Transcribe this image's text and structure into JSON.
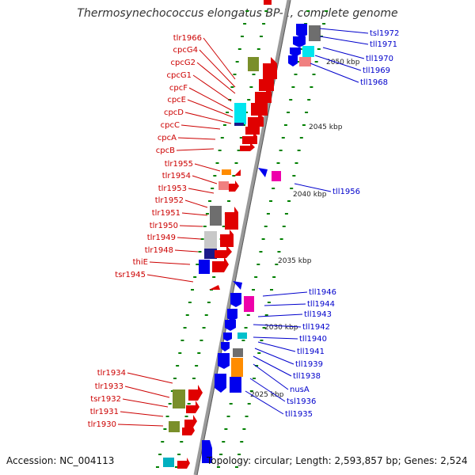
{
  "title": "Thermosynechococcus elongatus BP-1, complete genome",
  "footer": {
    "accession": "Accession: NC_004113",
    "topology": "Topology: circular; Length: 2,593,857 bp; Genes: 2,524"
  },
  "colors": {
    "forward_strand_label": "#cc0000",
    "reverse_strand_label": "#0000cc",
    "backbone": "#888888",
    "tick": "#008000"
  },
  "kbp_markers": [
    "2050 kbp",
    "2045 kbp",
    "2040 kbp",
    "2035 kbp",
    "2030 kbp",
    "2025 kbp"
  ],
  "forward_genes": [
    "tlr1966",
    "cpcG4",
    "cpcG2",
    "cpcG1",
    "cpcF",
    "cpcE",
    "cpcD",
    "cpcC",
    "cpcA",
    "cpcB",
    "tlr1955",
    "tlr1954",
    "tlr1953",
    "tlr1952",
    "tlr1951",
    "tlr1950",
    "tlr1949",
    "tlr1948",
    "thiE",
    "tsr1945",
    "tlr1934",
    "tlr1933",
    "tsr1932",
    "tlr1931",
    "tlr1930"
  ],
  "reverse_genes": [
    "tsl1972",
    "tll1971",
    "tll1970",
    "tll1969",
    "tll1968",
    "tll1956",
    "tll1946",
    "tll1944",
    "tll1943",
    "tll1942",
    "tll1940",
    "tll1941",
    "tll1939",
    "tll1938",
    "nusA",
    "tsl1936",
    "tll1935"
  ]
}
